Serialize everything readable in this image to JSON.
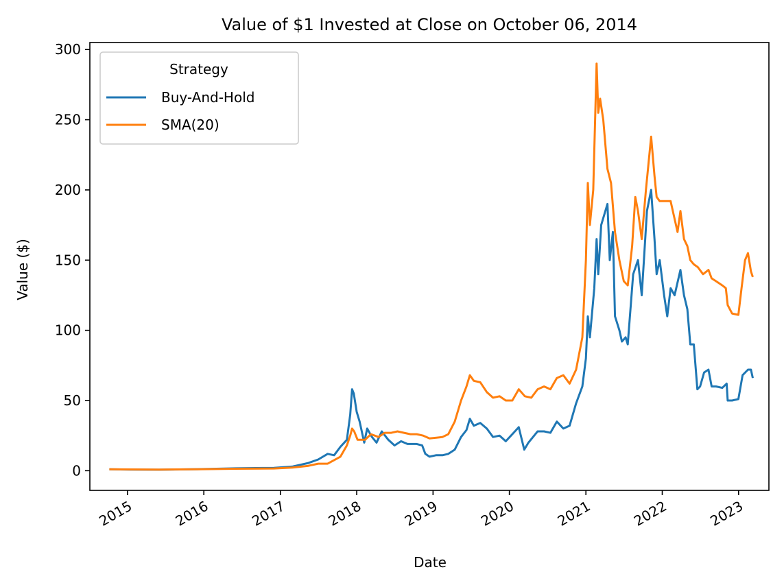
{
  "chart_data": {
    "type": "line",
    "title": "Value of $1 Invested at Close on October 06, 2014",
    "xlabel": "Date",
    "ylabel": "Value ($)",
    "xlim": [
      "2014-07-05",
      "2023-05-26"
    ],
    "ylim": [
      -14,
      305
    ],
    "x_ticks": [
      "2015",
      "2016",
      "2017",
      "2018",
      "2019",
      "2020",
      "2021",
      "2022",
      "2023"
    ],
    "y_ticks": [
      0,
      50,
      100,
      150,
      200,
      250,
      300
    ],
    "grid": false,
    "legend": {
      "title": "Strategy",
      "placement": "upper-left"
    },
    "series": [
      {
        "name": "Buy-And-Hold",
        "color": "#1f77b4",
        "points": [
          [
            "2014-10-06",
            1
          ],
          [
            "2015-01-15",
            0.8
          ],
          [
            "2015-06-01",
            0.7
          ],
          [
            "2015-12-01",
            1.1
          ],
          [
            "2016-06-01",
            1.7
          ],
          [
            "2016-12-01",
            2.0
          ],
          [
            "2017-03-01",
            3.0
          ],
          [
            "2017-05-15",
            5.5
          ],
          [
            "2017-07-01",
            8
          ],
          [
            "2017-08-15",
            12
          ],
          [
            "2017-09-15",
            11
          ],
          [
            "2017-10-15",
            17
          ],
          [
            "2017-11-15",
            22
          ],
          [
            "2017-12-01",
            40
          ],
          [
            "2017-12-10",
            58
          ],
          [
            "2017-12-18",
            55
          ],
          [
            "2018-01-01",
            42
          ],
          [
            "2018-01-15",
            35
          ],
          [
            "2018-02-06",
            20
          ],
          [
            "2018-02-20",
            30
          ],
          [
            "2018-03-15",
            24
          ],
          [
            "2018-04-06",
            20
          ],
          [
            "2018-05-01",
            28
          ],
          [
            "2018-06-01",
            22
          ],
          [
            "2018-07-01",
            18
          ],
          [
            "2018-08-01",
            21
          ],
          [
            "2018-09-01",
            19
          ],
          [
            "2018-10-15",
            19
          ],
          [
            "2018-11-10",
            18
          ],
          [
            "2018-11-25",
            12
          ],
          [
            "2018-12-15",
            10
          ],
          [
            "2019-01-15",
            11
          ],
          [
            "2019-02-15",
            11
          ],
          [
            "2019-03-15",
            12
          ],
          [
            "2019-04-15",
            15
          ],
          [
            "2019-05-15",
            24
          ],
          [
            "2019-06-10",
            29
          ],
          [
            "2019-06-26",
            37
          ],
          [
            "2019-07-15",
            32
          ],
          [
            "2019-08-15",
            34
          ],
          [
            "2019-09-15",
            30
          ],
          [
            "2019-10-15",
            24
          ],
          [
            "2019-11-15",
            25
          ],
          [
            "2019-12-15",
            21
          ],
          [
            "2020-01-15",
            26
          ],
          [
            "2020-02-15",
            31
          ],
          [
            "2020-03-12",
            15
          ],
          [
            "2020-04-01",
            20
          ],
          [
            "2020-05-15",
            28
          ],
          [
            "2020-06-15",
            28
          ],
          [
            "2020-07-15",
            27
          ],
          [
            "2020-08-15",
            35
          ],
          [
            "2020-09-15",
            30
          ],
          [
            "2020-10-15",
            32
          ],
          [
            "2020-11-15",
            48
          ],
          [
            "2020-12-15",
            60
          ],
          [
            "2021-01-01",
            80
          ],
          [
            "2021-01-10",
            110
          ],
          [
            "2021-01-20",
            95
          ],
          [
            "2021-02-10",
            130
          ],
          [
            "2021-02-21",
            165
          ],
          [
            "2021-03-01",
            140
          ],
          [
            "2021-03-15",
            175
          ],
          [
            "2021-04-14",
            190
          ],
          [
            "2021-04-25",
            150
          ],
          [
            "2021-05-10",
            170
          ],
          [
            "2021-05-20",
            110
          ],
          [
            "2021-06-10",
            100
          ],
          [
            "2021-06-22",
            92
          ],
          [
            "2021-07-10",
            95
          ],
          [
            "2021-07-20",
            90
          ],
          [
            "2021-08-15",
            140
          ],
          [
            "2021-09-07",
            150
          ],
          [
            "2021-09-25",
            125
          ],
          [
            "2021-10-20",
            185
          ],
          [
            "2021-11-09",
            200
          ],
          [
            "2021-11-25",
            165
          ],
          [
            "2021-12-05",
            140
          ],
          [
            "2021-12-20",
            150
          ],
          [
            "2022-01-10",
            125
          ],
          [
            "2022-01-25",
            110
          ],
          [
            "2022-02-10",
            130
          ],
          [
            "2022-03-01",
            125
          ],
          [
            "2022-03-29",
            143
          ],
          [
            "2022-04-15",
            125
          ],
          [
            "2022-05-01",
            115
          ],
          [
            "2022-05-15",
            90
          ],
          [
            "2022-06-01",
            90
          ],
          [
            "2022-06-18",
            58
          ],
          [
            "2022-07-01",
            60
          ],
          [
            "2022-07-20",
            70
          ],
          [
            "2022-08-10",
            72
          ],
          [
            "2022-08-25",
            60
          ],
          [
            "2022-09-15",
            60
          ],
          [
            "2022-10-15",
            59
          ],
          [
            "2022-11-05",
            62
          ],
          [
            "2022-11-10",
            50
          ],
          [
            "2022-12-01",
            50
          ],
          [
            "2022-12-31",
            51
          ],
          [
            "2023-01-20",
            68
          ],
          [
            "2023-02-15",
            72
          ],
          [
            "2023-03-01",
            72
          ],
          [
            "2023-03-10",
            66
          ]
        ]
      },
      {
        "name": "SMA(20)",
        "color": "#ff7f0e",
        "points": [
          [
            "2014-10-06",
            1
          ],
          [
            "2015-01-15",
            0.9
          ],
          [
            "2015-06-01",
            0.8
          ],
          [
            "2015-12-01",
            1.0
          ],
          [
            "2016-06-01",
            1.4
          ],
          [
            "2016-12-01",
            1.6
          ],
          [
            "2017-03-01",
            2.2
          ],
          [
            "2017-05-15",
            3.5
          ],
          [
            "2017-07-01",
            5
          ],
          [
            "2017-08-15",
            5
          ],
          [
            "2017-10-15",
            10
          ],
          [
            "2017-11-15",
            18
          ],
          [
            "2017-12-01",
            25
          ],
          [
            "2017-12-10",
            30
          ],
          [
            "2017-12-20",
            28
          ],
          [
            "2018-01-05",
            22
          ],
          [
            "2018-02-10",
            22
          ],
          [
            "2018-03-10",
            26
          ],
          [
            "2018-04-15",
            24
          ],
          [
            "2018-05-15",
            27
          ],
          [
            "2018-06-15",
            27
          ],
          [
            "2018-07-15",
            28
          ],
          [
            "2018-08-15",
            27
          ],
          [
            "2018-09-15",
            26
          ],
          [
            "2018-10-15",
            26
          ],
          [
            "2018-11-15",
            25
          ],
          [
            "2018-12-15",
            23
          ],
          [
            "2019-02-15",
            24
          ],
          [
            "2019-03-15",
            26
          ],
          [
            "2019-04-15",
            35
          ],
          [
            "2019-05-15",
            50
          ],
          [
            "2019-06-10",
            60
          ],
          [
            "2019-06-26",
            68
          ],
          [
            "2019-07-15",
            64
          ],
          [
            "2019-08-15",
            63
          ],
          [
            "2019-09-15",
            56
          ],
          [
            "2019-10-15",
            52
          ],
          [
            "2019-11-15",
            53
          ],
          [
            "2019-12-15",
            50
          ],
          [
            "2020-01-15",
            50
          ],
          [
            "2020-02-15",
            58
          ],
          [
            "2020-03-15",
            53
          ],
          [
            "2020-04-15",
            52
          ],
          [
            "2020-05-15",
            58
          ],
          [
            "2020-06-15",
            60
          ],
          [
            "2020-07-15",
            58
          ],
          [
            "2020-08-15",
            66
          ],
          [
            "2020-09-15",
            68
          ],
          [
            "2020-10-15",
            62
          ],
          [
            "2020-11-15",
            72
          ],
          [
            "2020-12-15",
            95
          ],
          [
            "2021-01-01",
            150
          ],
          [
            "2021-01-10",
            205
          ],
          [
            "2021-01-20",
            175
          ],
          [
            "2021-02-05",
            200
          ],
          [
            "2021-02-21",
            290
          ],
          [
            "2021-03-01",
            255
          ],
          [
            "2021-03-10",
            265
          ],
          [
            "2021-03-25",
            250
          ],
          [
            "2021-04-14",
            215
          ],
          [
            "2021-05-01",
            205
          ],
          [
            "2021-05-20",
            170
          ],
          [
            "2021-06-10",
            150
          ],
          [
            "2021-07-01",
            135
          ],
          [
            "2021-07-20",
            132
          ],
          [
            "2021-08-10",
            160
          ],
          [
            "2021-08-25",
            195
          ],
          [
            "2021-09-07",
            185
          ],
          [
            "2021-09-25",
            165
          ],
          [
            "2021-10-15",
            200
          ],
          [
            "2021-11-09",
            238
          ],
          [
            "2021-11-25",
            210
          ],
          [
            "2021-12-05",
            195
          ],
          [
            "2021-12-20",
            192
          ],
          [
            "2022-01-15",
            192
          ],
          [
            "2022-02-10",
            192
          ],
          [
            "2022-02-25",
            182
          ],
          [
            "2022-03-15",
            170
          ],
          [
            "2022-03-29",
            185
          ],
          [
            "2022-04-15",
            165
          ],
          [
            "2022-05-01",
            160
          ],
          [
            "2022-05-15",
            150
          ],
          [
            "2022-06-01",
            147
          ],
          [
            "2022-06-20",
            145
          ],
          [
            "2022-07-15",
            140
          ],
          [
            "2022-08-10",
            143
          ],
          [
            "2022-08-25",
            137
          ],
          [
            "2022-09-15",
            135
          ],
          [
            "2022-10-15",
            132
          ],
          [
            "2022-11-01",
            130
          ],
          [
            "2022-11-10",
            118
          ],
          [
            "2022-12-01",
            112
          ],
          [
            "2022-12-31",
            111
          ],
          [
            "2023-01-15",
            130
          ],
          [
            "2023-02-01",
            150
          ],
          [
            "2023-02-15",
            155
          ],
          [
            "2023-03-01",
            142
          ],
          [
            "2023-03-10",
            138
          ]
        ]
      }
    ]
  }
}
